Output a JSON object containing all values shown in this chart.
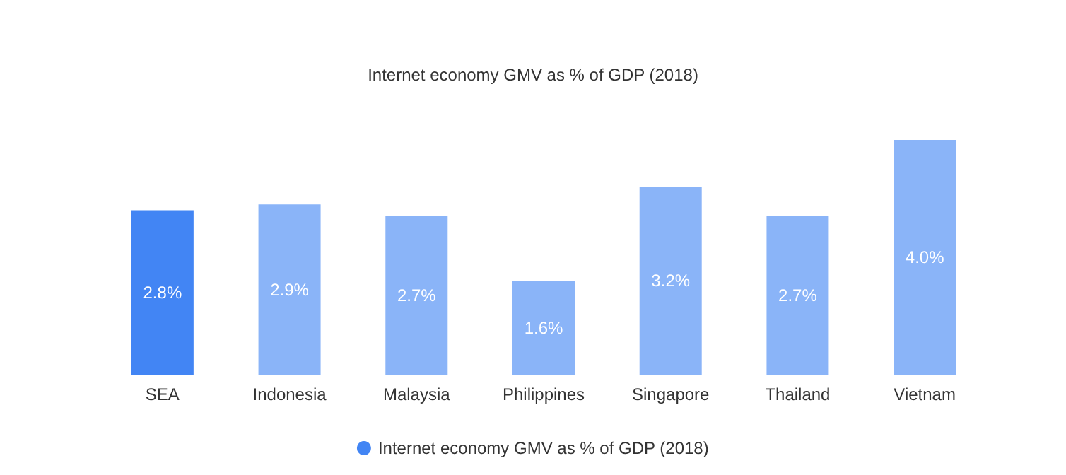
{
  "chart_data": {
    "type": "bar",
    "title": "Internet economy GMV as % of GDP (2018)",
    "categories": [
      "SEA",
      "Indonesia",
      "Malaysia",
      "Philippines",
      "Singapore",
      "Thailand",
      "Vietnam"
    ],
    "series": [
      {
        "name": "Internet economy GMV as % of GDP (2018)",
        "color": "#4285f4",
        "colors": [
          "#4285f4",
          "#8ab4f8",
          "#8ab4f8",
          "#8ab4f8",
          "#8ab4f8",
          "#8ab4f8",
          "#8ab4f8"
        ],
        "values": [
          2.8,
          2.9,
          2.7,
          1.6,
          3.2,
          2.7,
          4.0
        ],
        "value_labels": [
          "2.8%",
          "2.9%",
          "2.7%",
          "1.6%",
          "3.2%",
          "2.7%",
          "4.0%"
        ]
      }
    ],
    "legend": "bottom"
  }
}
